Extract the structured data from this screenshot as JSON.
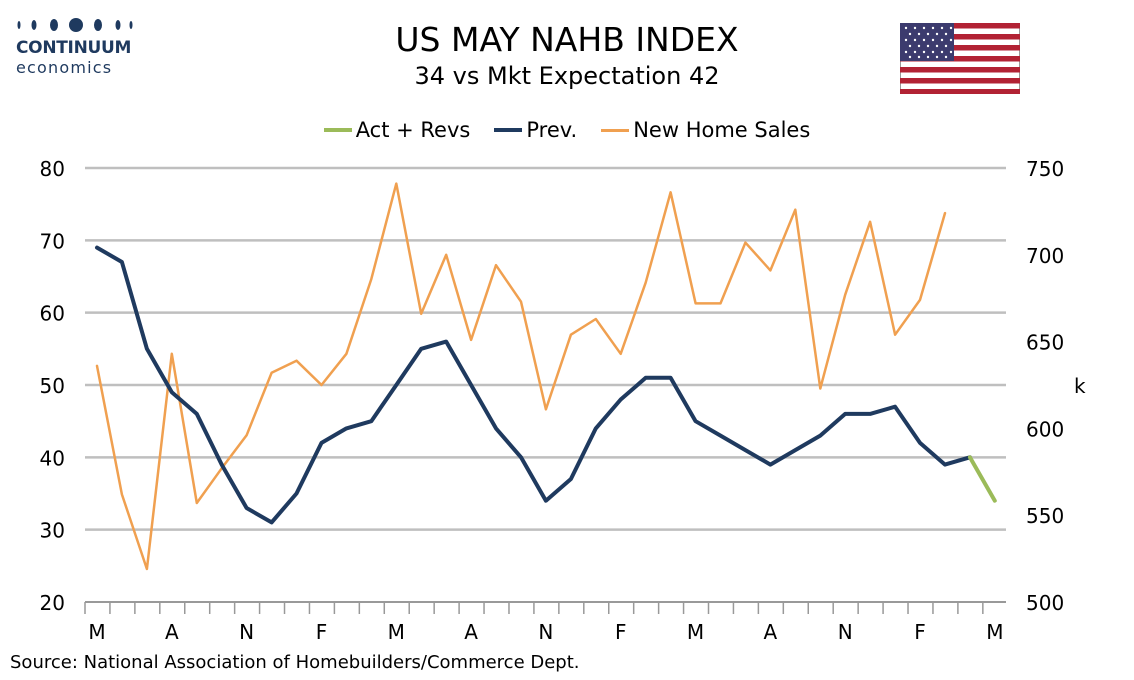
{
  "logo": {
    "name": "CONTINUUM",
    "sub": "economics"
  },
  "title": "US MAY NAHB INDEX",
  "subtitle": "34 vs Mkt Expectation 42",
  "source": "Source: National Association of Homebuilders/Commerce Dept.",
  "chart_data": {
    "type": "line",
    "legend_position": "top-center",
    "grid": true,
    "x_tick_labels": [
      "M",
      "A",
      "N",
      "F",
      "M",
      "A",
      "N",
      "F",
      "M",
      "A",
      "N",
      "F",
      "M"
    ],
    "y_left": {
      "ticks": [
        "20",
        "30",
        "40",
        "50",
        "60",
        "70",
        "80"
      ],
      "lim": [
        20,
        80
      ]
    },
    "y_right": {
      "ticks": [
        "500",
        "550",
        "600",
        "650",
        "700",
        "750"
      ],
      "lim": [
        500,
        750
      ],
      "label": "k"
    },
    "series": [
      {
        "name": "Act + Revs",
        "color": "#9bbb59",
        "axis": "left",
        "start_index": 35,
        "values": [
          40,
          34
        ]
      },
      {
        "name": "Prev.",
        "color": "#1f3a5f",
        "axis": "left",
        "start_index": 0,
        "values": [
          69,
          67,
          55,
          49,
          46,
          39,
          33,
          31,
          35,
          42,
          44,
          45,
          50,
          55,
          56,
          50,
          44,
          40,
          34,
          37,
          44,
          48,
          51,
          51,
          45,
          43,
          41,
          39,
          41,
          43,
          46,
          46,
          47,
          42,
          39,
          40
        ]
      },
      {
        "name": "New Home Sales",
        "color": "#f0a050",
        "axis": "right",
        "start_index": 0,
        "values": [
          636,
          562,
          519,
          643,
          557,
          577,
          596,
          632,
          639,
          625,
          643,
          686,
          741,
          666,
          700,
          651,
          694,
          673,
          611,
          654,
          663,
          643,
          684,
          736,
          672,
          672,
          707,
          691,
          726,
          623,
          677,
          719,
          654,
          674,
          724
        ]
      }
    ]
  }
}
